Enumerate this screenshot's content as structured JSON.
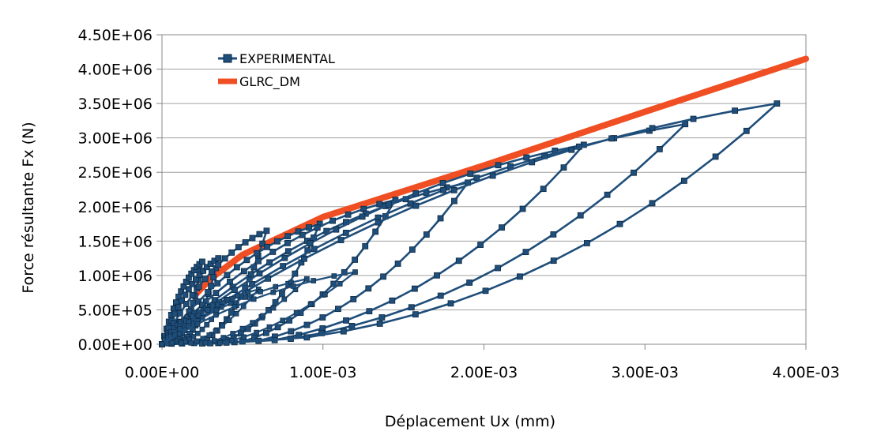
{
  "chart_data": {
    "type": "scatter",
    "title": "",
    "xlabel": "Déplacement Ux (mm)",
    "ylabel": "Force résultante Fx (N)",
    "xlim": [
      0,
      0.004
    ],
    "ylim": [
      0,
      4500000
    ],
    "x_ticks": [
      "0.00E+00",
      "1.00E-03",
      "2.00E-03",
      "3.00E-03",
      "4.00E-03"
    ],
    "y_ticks": [
      "0.00E+00",
      "5.00E+05",
      "1.00E+06",
      "1.50E+06",
      "2.00E+06",
      "2.50E+06",
      "3.00E+06",
      "3.50E+06",
      "4.00E+06",
      "4.50E+06"
    ],
    "grid": "horizontal",
    "legend_position": "top-left",
    "series": [
      {
        "name": "EXPERIMENTAL",
        "color": "#1f4e7a",
        "marker": "square",
        "loops": [
          {
            "peak": [
              0.00025,
              1200000
            ],
            "low": [
              8e-05,
              50000
            ]
          },
          {
            "peak": [
              0.00035,
              1250000
            ],
            "low": [
              0.00012,
              30000
            ]
          },
          {
            "peak": [
              0.00065,
              1650000
            ],
            "low": [
              0.00025,
              40000
            ]
          },
          {
            "peak": [
              0.00098,
              1750000
            ],
            "low": [
              0.0004,
              60000
            ]
          },
          {
            "peak": [
              0.00145,
              2100000
            ],
            "low": [
              0.0005,
              40000
            ]
          },
          {
            "peak": [
              0.0019,
              2350000
            ],
            "low": [
              0.0006,
              50000
            ]
          },
          {
            "peak": [
              0.00262,
              2900000
            ],
            "low": [
              0.0007,
              60000
            ]
          },
          {
            "peak": [
              0.00325,
              3200000
            ],
            "low": [
              0.0008,
              80000
            ]
          },
          {
            "peak": [
              0.00382,
              3500000
            ],
            "low": [
              0.0009,
              100000
            ]
          }
        ]
      },
      {
        "name": "GLRC_DM",
        "color": "#f04e23",
        "points": [
          {
            "x": 0.0002,
            "y": 700000
          },
          {
            "x": 0.0003,
            "y": 950000
          },
          {
            "x": 0.0005,
            "y": 1300000
          },
          {
            "x": 0.001,
            "y": 1850000
          },
          {
            "x": 0.002,
            "y": 2600000
          },
          {
            "x": 0.003,
            "y": 3380000
          },
          {
            "x": 0.004,
            "y": 4150000
          }
        ]
      }
    ]
  }
}
